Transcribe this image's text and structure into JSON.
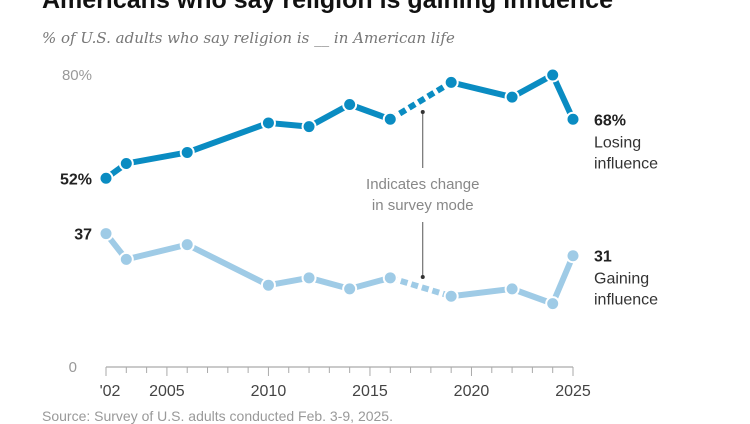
{
  "chart_data": {
    "type": "line",
    "title": "Americans who say religion is gaining influence",
    "subtitle": "% of U.S. adults who say religion is __ in American life",
    "source": "Source: Survey of U.S. adults conducted Feb. 3-9, 2025.",
    "x": [
      2002,
      2003,
      2006,
      2010,
      2012,
      2014,
      2016,
      2019,
      2022,
      2024,
      2025
    ],
    "xlim": [
      2002,
      2025
    ],
    "ylim": [
      0,
      80
    ],
    "x_tick_labels": [
      {
        "year": 2002,
        "label": "'02"
      },
      {
        "year": 2005,
        "label": "2005"
      },
      {
        "year": 2010,
        "label": "2010"
      },
      {
        "year": 2015,
        "label": "2015"
      },
      {
        "year": 2020,
        "label": "2020"
      },
      {
        "year": 2025,
        "label": "2025"
      }
    ],
    "y_tick_labels": [
      {
        "value": 80,
        "label": "80%"
      },
      {
        "value": 0,
        "label": "0"
      }
    ],
    "grid": false,
    "dashed_segment": [
      2016,
      2019
    ],
    "series": [
      {
        "name": "Losing influence",
        "color": "#0a8cc2",
        "values": [
          52,
          56,
          59,
          67,
          66,
          72,
          68,
          78,
          74,
          80,
          68
        ],
        "start_label": "52%",
        "end_label": "68%",
        "end_name_lines": [
          "Losing",
          "influence"
        ]
      },
      {
        "name": "Gaining influence",
        "color": "#9fcbe6",
        "values": [
          37,
          30,
          34,
          23,
          25,
          22,
          25,
          20,
          22,
          18,
          31
        ],
        "start_label": "37",
        "end_label": "31",
        "end_name_lines": [
          "Gaining",
          "influence"
        ]
      }
    ],
    "annotation": {
      "lines": [
        "Indicates change",
        "in survey mode"
      ],
      "year": 2017.6
    }
  }
}
